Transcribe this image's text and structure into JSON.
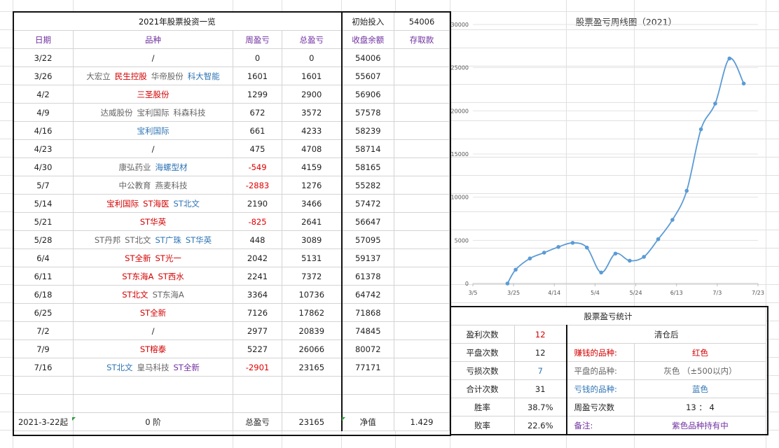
{
  "ledger": {
    "title": "2021年股票投资一览",
    "initial_label": "初始投入",
    "initial_value": "54006",
    "headers": {
      "date": "日期",
      "stock": "品种",
      "weekly": "周盈亏",
      "total": "总盈亏",
      "balance": "收盘余额",
      "deposit": "存取款"
    },
    "rows": [
      {
        "date": "3/22",
        "stocks": [
          {
            "t": "/",
            "c": "dark"
          }
        ],
        "weekly": "0",
        "total": "0",
        "balance": "54006",
        "neg": false
      },
      {
        "date": "3/26",
        "stocks": [
          {
            "t": "大宏立",
            "c": "gray"
          },
          {
            "t": "民生控股",
            "c": "red"
          },
          {
            "t": "华帝股份",
            "c": "gray"
          },
          {
            "t": "科大智能",
            "c": "blue"
          }
        ],
        "weekly": "1601",
        "total": "1601",
        "balance": "55607",
        "neg": false
      },
      {
        "date": "4/2",
        "stocks": [
          {
            "t": "三圣股份",
            "c": "red"
          }
        ],
        "weekly": "1299",
        "total": "2900",
        "balance": "56906",
        "neg": false
      },
      {
        "date": "4/9",
        "stocks": [
          {
            "t": "达威股份",
            "c": "gray"
          },
          {
            "t": "宝利国际",
            "c": "gray"
          },
          {
            "t": "科森科技",
            "c": "gray"
          }
        ],
        "weekly": "672",
        "total": "3572",
        "balance": "57578",
        "neg": false
      },
      {
        "date": "4/16",
        "stocks": [
          {
            "t": "宝利国际",
            "c": "blue"
          }
        ],
        "weekly": "661",
        "total": "4233",
        "balance": "58239",
        "neg": false
      },
      {
        "date": "4/23",
        "stocks": [
          {
            "t": "/",
            "c": "dark"
          }
        ],
        "weekly": "475",
        "total": "4708",
        "balance": "58714",
        "neg": false
      },
      {
        "date": "4/30",
        "stocks": [
          {
            "t": "康弘药业",
            "c": "gray"
          },
          {
            "t": "海螺型材",
            "c": "blue"
          }
        ],
        "weekly": "-549",
        "total": "4159",
        "balance": "58165",
        "neg": true
      },
      {
        "date": "5/7",
        "stocks": [
          {
            "t": "中公教育",
            "c": "gray"
          },
          {
            "t": "燕麦科技",
            "c": "gray"
          }
        ],
        "weekly": "-2883",
        "total": "1276",
        "balance": "55282",
        "neg": true
      },
      {
        "date": "5/14",
        "stocks": [
          {
            "t": "宝利国际",
            "c": "red"
          },
          {
            "t": "ST海医",
            "c": "red"
          },
          {
            "t": "ST北文",
            "c": "blue"
          }
        ],
        "weekly": "2190",
        "total": "3466",
        "balance": "57472",
        "neg": false
      },
      {
        "date": "5/21",
        "stocks": [
          {
            "t": "ST华英",
            "c": "red"
          }
        ],
        "weekly": "-825",
        "total": "2641",
        "balance": "56647",
        "neg": true
      },
      {
        "date": "5/28",
        "stocks": [
          {
            "t": "ST丹邦",
            "c": "gray"
          },
          {
            "t": "ST北文",
            "c": "gray"
          },
          {
            "t": "ST广珠",
            "c": "blue"
          },
          {
            "t": "ST华英",
            "c": "blue"
          }
        ],
        "weekly": "448",
        "total": "3089",
        "balance": "57095",
        "neg": false
      },
      {
        "date": "6/4",
        "stocks": [
          {
            "t": "ST全新",
            "c": "red"
          },
          {
            "t": "ST光一",
            "c": "red"
          }
        ],
        "weekly": "2042",
        "total": "5131",
        "balance": "59137",
        "neg": false
      },
      {
        "date": "6/11",
        "stocks": [
          {
            "t": "ST东海A",
            "c": "red"
          },
          {
            "t": "ST西水",
            "c": "red"
          }
        ],
        "weekly": "2241",
        "total": "7372",
        "balance": "61378",
        "neg": false
      },
      {
        "date": "6/18",
        "stocks": [
          {
            "t": "ST北文",
            "c": "red"
          },
          {
            "t": "ST东海A",
            "c": "gray"
          }
        ],
        "weekly": "3364",
        "total": "10736",
        "balance": "64742",
        "neg": false
      },
      {
        "date": "6/25",
        "stocks": [
          {
            "t": "ST全新",
            "c": "red"
          }
        ],
        "weekly": "7126",
        "total": "17862",
        "balance": "71868",
        "neg": false
      },
      {
        "date": "7/2",
        "stocks": [
          {
            "t": "/",
            "c": "dark"
          }
        ],
        "weekly": "2977",
        "total": "20839",
        "balance": "74845",
        "neg": false
      },
      {
        "date": "7/9",
        "stocks": [
          {
            "t": "ST榕泰",
            "c": "red"
          }
        ],
        "weekly": "5227",
        "total": "26066",
        "balance": "80072",
        "neg": false
      },
      {
        "date": "7/16",
        "stocks": [
          {
            "t": "ST北文",
            "c": "blue"
          },
          {
            "t": "皇马科技",
            "c": "gray"
          },
          {
            "t": "ST全新",
            "c": "purple"
          }
        ],
        "weekly": "-2901",
        "total": "23165",
        "balance": "77171",
        "neg": true
      }
    ],
    "footer": {
      "since": "2021-3-22起",
      "stage": "0 阶",
      "total_label": "总盈亏",
      "total_value": "23165",
      "nav_label": "净值",
      "nav_value": "1.429"
    }
  },
  "stats": {
    "title": "股票盈亏统计",
    "rows": [
      {
        "label": "盈利次数",
        "value": "12",
        "vcolor": "red",
        "c1": "",
        "c2": "清仓后",
        "c1color": "dark",
        "c2color": "dark"
      },
      {
        "label": "平盘次数",
        "value": "12",
        "vcolor": "dark",
        "c1": "赚钱的品种:",
        "c2": "红色",
        "c1color": "red",
        "c2color": "red"
      },
      {
        "label": "亏损次数",
        "value": "7",
        "vcolor": "blue",
        "c1": "平盘的品种:",
        "c2": "灰色 （±500以内）",
        "c1color": "gray",
        "c2color": "gray"
      },
      {
        "label": "合计次数",
        "value": "31",
        "vcolor": "dark",
        "c1": "亏钱的品种:",
        "c2": "蓝色",
        "c1color": "blue",
        "c2color": "blue"
      },
      {
        "label": "胜率",
        "value": "38.7%",
        "vcolor": "dark",
        "c1": "周盈亏次数",
        "c2": "13 ： 4",
        "c1color": "dark",
        "c2color": "dark"
      },
      {
        "label": "败率",
        "value": "22.6%",
        "vcolor": "dark",
        "c1": "备注:",
        "c2": "紫色品种持有中",
        "c1color": "purple",
        "c2color": "purple"
      }
    ]
  },
  "chart_data": {
    "type": "line",
    "title": "股票盈亏周线图（2021）",
    "x": [
      "2021-03-22",
      "2021-03-26",
      "2021-04-02",
      "2021-04-09",
      "2021-04-16",
      "2021-04-23",
      "2021-04-30",
      "2021-05-07",
      "2021-05-14",
      "2021-05-21",
      "2021-05-28",
      "2021-06-04",
      "2021-06-11",
      "2021-06-18",
      "2021-06-25",
      "2021-07-02",
      "2021-07-09",
      "2021-07-16"
    ],
    "series": [
      {
        "values": [
          0,
          1601,
          2900,
          3572,
          4233,
          4708,
          4159,
          1276,
          3466,
          2641,
          3089,
          5131,
          7372,
          10736,
          17862,
          20839,
          26066,
          23165
        ]
      }
    ],
    "x_tick_labels": [
      "3/5",
      "3/25",
      "4/14",
      "5/4",
      "5/24",
      "6/13",
      "7/3",
      "7/23"
    ],
    "x_ticks": [
      "2021-03-05",
      "2021-03-25",
      "2021-04-14",
      "2021-05-04",
      "2021-05-24",
      "2021-06-13",
      "2021-07-03",
      "2021-07-23"
    ],
    "y_tick_labels": [
      "0",
      "5000",
      "10000",
      "15000",
      "20000",
      "25000",
      "30000"
    ],
    "ylim": [
      0,
      30000
    ],
    "grid": true,
    "line_color": "#5b9bd5"
  }
}
